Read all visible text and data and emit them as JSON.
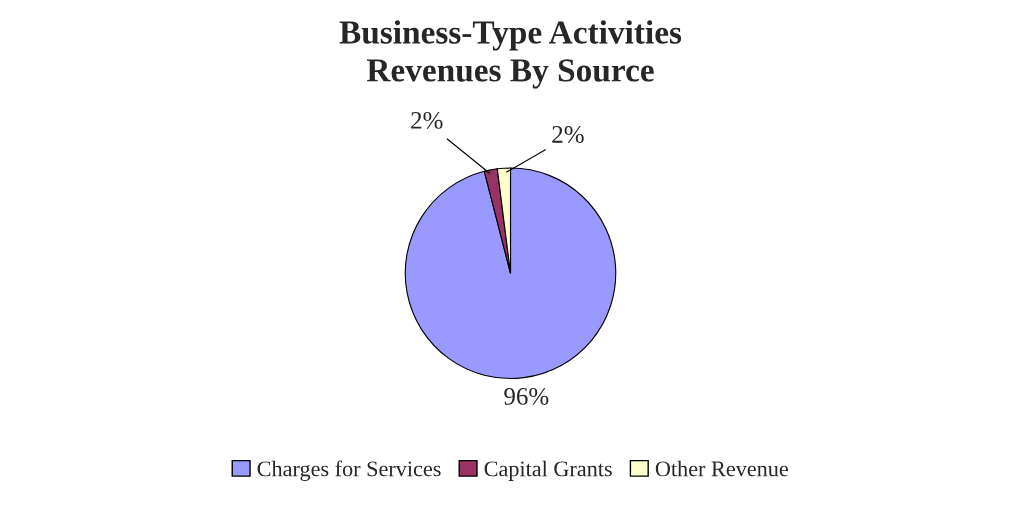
{
  "chart_data": {
    "type": "pie",
    "title": "Business-Type Activities",
    "subtitle": "Revenues By Source",
    "categories": [
      "Charges for Services",
      "Capital Grants",
      "Other Revenue"
    ],
    "values": [
      96,
      2,
      2
    ],
    "colors": [
      "#9999ff",
      "#993366",
      "#ffffcc"
    ],
    "value_labels": [
      "96%",
      "2%",
      "2%"
    ],
    "legend": "bottom"
  }
}
